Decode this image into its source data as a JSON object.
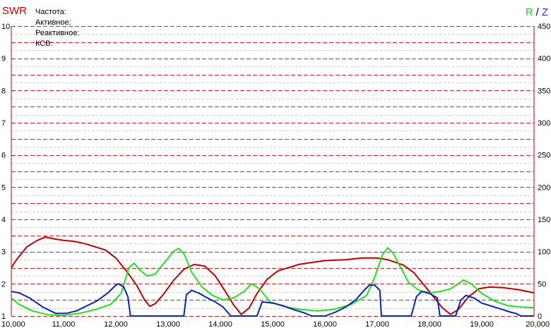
{
  "header": {
    "swr_label": "SWR",
    "r_label": "R",
    "slash": "/",
    "z_label": "Z",
    "readouts": [
      "Частота:",
      "Активное:",
      "Реактивное:",
      "КСВ:"
    ]
  },
  "colors": {
    "swr": "#c00000",
    "r": "#22e022",
    "z": "#0a23b4",
    "grid_major": "#cc2222",
    "grid_minor": "#c8c8c8"
  },
  "chart_data": {
    "type": "line",
    "grid": true,
    "x_ticks": [
      "10,000",
      "11,000",
      "12,000",
      "13,000",
      "14,000",
      "15,000",
      "16,000",
      "17,000",
      "18,000",
      "19,000",
      "20,000"
    ],
    "xlim": [
      10000,
      20000
    ],
    "y_left_label": "SWR",
    "y_left_ticks": [
      "10",
      "9",
      "8",
      "7",
      "6",
      "5",
      "4",
      "3",
      "2",
      "1"
    ],
    "y_left_lim": [
      1,
      10
    ],
    "y_right_label": "R / Z",
    "y_right_ticks": [
      "450",
      "400",
      "350",
      "300",
      "250",
      "200",
      "150",
      "100",
      "50",
      "0"
    ],
    "y_right_lim": [
      0,
      450
    ],
    "series": [
      {
        "name": "SWR",
        "axis": "left",
        "color": "#c00000",
        "points": [
          [
            10000,
            2.5
          ],
          [
            10100,
            2.75
          ],
          [
            10300,
            3.15
          ],
          [
            10500,
            3.35
          ],
          [
            10650,
            3.45
          ],
          [
            10800,
            3.4
          ],
          [
            11000,
            3.35
          ],
          [
            11200,
            3.32
          ],
          [
            11400,
            3.25
          ],
          [
            11600,
            3.15
          ],
          [
            11800,
            3.05
          ],
          [
            12000,
            2.8
          ],
          [
            12200,
            2.4
          ],
          [
            12400,
            1.95
          ],
          [
            12550,
            1.5
          ],
          [
            12650,
            1.3
          ],
          [
            12750,
            1.38
          ],
          [
            12900,
            1.65
          ],
          [
            13100,
            2.1
          ],
          [
            13300,
            2.45
          ],
          [
            13500,
            2.6
          ],
          [
            13700,
            2.55
          ],
          [
            13900,
            2.25
          ],
          [
            14100,
            1.75
          ],
          [
            14250,
            1.35
          ],
          [
            14400,
            1.05
          ],
          [
            14550,
            1.25
          ],
          [
            14700,
            1.7
          ],
          [
            14900,
            2.15
          ],
          [
            15100,
            2.4
          ],
          [
            15300,
            2.5
          ],
          [
            15500,
            2.6
          ],
          [
            15700,
            2.65
          ],
          [
            16000,
            2.72
          ],
          [
            16400,
            2.75
          ],
          [
            16700,
            2.8
          ],
          [
            17000,
            2.8
          ],
          [
            17200,
            2.75
          ],
          [
            17500,
            2.58
          ],
          [
            17700,
            2.35
          ],
          [
            17900,
            1.95
          ],
          [
            18100,
            1.55
          ],
          [
            18250,
            1.25
          ],
          [
            18400,
            1.05
          ],
          [
            18550,
            1.2
          ],
          [
            18750,
            1.6
          ],
          [
            18950,
            1.85
          ],
          [
            19150,
            1.9
          ],
          [
            19400,
            1.88
          ],
          [
            19700,
            1.82
          ],
          [
            20000,
            1.72
          ]
        ]
      },
      {
        "name": "R",
        "axis": "right",
        "color": "#22e022",
        "points": [
          [
            10000,
            28
          ],
          [
            10150,
            18
          ],
          [
            10400,
            8
          ],
          [
            10700,
            2
          ],
          [
            11000,
            1
          ],
          [
            11300,
            4
          ],
          [
            11600,
            10
          ],
          [
            11900,
            18
          ],
          [
            12100,
            35
          ],
          [
            12250,
            75
          ],
          [
            12350,
            82
          ],
          [
            12450,
            72
          ],
          [
            12600,
            62
          ],
          [
            12750,
            65
          ],
          [
            12900,
            80
          ],
          [
            13100,
            100
          ],
          [
            13200,
            105
          ],
          [
            13300,
            97
          ],
          [
            13450,
            68
          ],
          [
            13650,
            45
          ],
          [
            13850,
            32
          ],
          [
            14050,
            25
          ],
          [
            14250,
            28
          ],
          [
            14450,
            38
          ],
          [
            14600,
            50
          ],
          [
            14750,
            42
          ],
          [
            14950,
            22
          ],
          [
            15250,
            14
          ],
          [
            15550,
            10
          ],
          [
            15850,
            8
          ],
          [
            16150,
            10
          ],
          [
            16500,
            18
          ],
          [
            16800,
            32
          ],
          [
            16950,
            60
          ],
          [
            17100,
            95
          ],
          [
            17200,
            106
          ],
          [
            17300,
            98
          ],
          [
            17450,
            75
          ],
          [
            17600,
            52
          ],
          [
            17800,
            40
          ],
          [
            18000,
            36
          ],
          [
            18200,
            38
          ],
          [
            18400,
            42
          ],
          [
            18550,
            50
          ],
          [
            18650,
            56
          ],
          [
            18800,
            50
          ],
          [
            19000,
            35
          ],
          [
            19250,
            23
          ],
          [
            19500,
            16
          ],
          [
            19750,
            14
          ],
          [
            20000,
            13
          ]
        ]
      },
      {
        "name": "Z",
        "axis": "right",
        "color": "#0a23b4",
        "points": [
          [
            10000,
            38
          ],
          [
            10150,
            36
          ],
          [
            10350,
            28
          ],
          [
            10600,
            14
          ],
          [
            10850,
            4
          ],
          [
            11050,
            4
          ],
          [
            11250,
            8
          ],
          [
            11450,
            16
          ],
          [
            11650,
            24
          ],
          [
            11850,
            36
          ],
          [
            12000,
            48
          ],
          [
            12050,
            50
          ],
          [
            12150,
            45
          ],
          [
            12230,
            30
          ],
          [
            12280,
            0
          ],
          [
            13300,
            0
          ],
          [
            13350,
            33
          ],
          [
            13450,
            40
          ],
          [
            13600,
            35
          ],
          [
            13750,
            28
          ],
          [
            13900,
            22
          ],
          [
            14050,
            14
          ],
          [
            14200,
            0
          ],
          [
            14700,
            0
          ],
          [
            14800,
            22
          ],
          [
            15000,
            20
          ],
          [
            15200,
            16
          ],
          [
            15400,
            10
          ],
          [
            15600,
            5
          ],
          [
            15750,
            0
          ],
          [
            16000,
            0
          ],
          [
            16200,
            6
          ],
          [
            16400,
            14
          ],
          [
            16600,
            26
          ],
          [
            16750,
            40
          ],
          [
            16850,
            48
          ],
          [
            16950,
            48
          ],
          [
            17050,
            40
          ],
          [
            17080,
            0
          ],
          [
            17650,
            0
          ],
          [
            17750,
            30
          ],
          [
            17850,
            38
          ],
          [
            18000,
            35
          ],
          [
            18150,
            28
          ],
          [
            18200,
            0
          ],
          [
            18500,
            0
          ],
          [
            18600,
            25
          ],
          [
            18700,
            32
          ],
          [
            18850,
            28
          ],
          [
            19000,
            20
          ],
          [
            19200,
            15
          ],
          [
            19400,
            10
          ],
          [
            19550,
            6
          ],
          [
            19650,
            4
          ],
          [
            19750,
            0
          ],
          [
            20000,
            0
          ]
        ]
      }
    ]
  }
}
